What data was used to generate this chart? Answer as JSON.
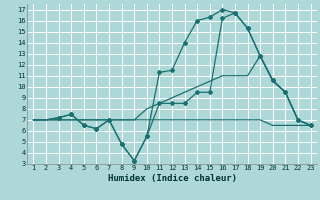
{
  "xlabel": "Humidex (Indice chaleur)",
  "bg_color": "#aed8d8",
  "grid_color": "#ffffff",
  "line_color": "#1a7070",
  "xticks": [
    1,
    2,
    3,
    4,
    5,
    6,
    7,
    8,
    9,
    10,
    11,
    12,
    13,
    14,
    15,
    16,
    17,
    18,
    19,
    20,
    21,
    22,
    23
  ],
  "yticks": [
    3,
    4,
    5,
    6,
    7,
    8,
    9,
    10,
    11,
    12,
    13,
    14,
    15,
    16,
    17
  ],
  "line1_x": [
    1,
    2,
    3,
    4,
    5,
    6,
    7,
    8,
    9,
    10,
    11,
    12,
    13,
    14,
    15,
    16,
    17,
    18,
    19,
    20,
    21,
    22,
    23
  ],
  "line1_y": [
    7,
    7,
    7,
    7,
    7,
    7,
    7,
    7,
    7,
    7,
    7,
    7,
    7,
    7,
    7,
    7,
    7,
    7,
    7,
    6.5,
    6.5,
    6.5,
    6.5
  ],
  "line2_x": [
    1,
    2,
    3,
    4,
    5,
    6,
    7,
    8,
    9,
    10,
    11,
    12,
    13,
    14,
    15,
    16,
    17,
    18,
    19,
    20,
    21,
    22,
    23
  ],
  "line2_y": [
    7,
    7,
    7,
    7,
    7,
    7,
    7,
    7,
    7,
    8,
    8.5,
    9,
    9.5,
    10,
    10.5,
    11,
    11,
    11,
    12.8,
    10.5,
    9.5,
    7,
    6.5
  ],
  "line3_x": [
    1,
    2,
    3,
    4,
    5,
    6,
    7,
    8,
    9,
    10,
    11,
    12,
    13,
    14,
    15,
    16,
    17,
    18,
    19,
    20,
    21,
    22,
    23
  ],
  "line3_y": [
    7,
    7,
    7.2,
    7.5,
    6.5,
    6.2,
    7,
    4.8,
    3.3,
    5.5,
    8.5,
    8.5,
    8.5,
    9.5,
    9.5,
    16.2,
    16.7,
    15.3,
    12.8,
    10.6,
    9.5,
    7,
    6.5
  ],
  "line4_x": [
    1,
    2,
    3,
    4,
    5,
    6,
    7,
    8,
    9,
    10,
    11,
    12,
    13,
    14,
    15,
    16,
    17,
    18,
    19,
    20,
    21,
    22,
    23
  ],
  "line4_y": [
    7,
    7,
    7.2,
    7.5,
    6.5,
    6.2,
    7,
    4.8,
    3.3,
    5.5,
    11.3,
    11.5,
    14,
    16.0,
    16.3,
    17,
    16.7,
    15.3,
    12.8,
    10.6,
    9.5,
    7,
    6.5
  ],
  "marker_x3": [
    3,
    4,
    5,
    6,
    7,
    8,
    9,
    10,
    11,
    12,
    13,
    14,
    15,
    16,
    17,
    18,
    19,
    20,
    21,
    22,
    23
  ],
  "marker_y3": [
    7.2,
    7.5,
    6.5,
    6.2,
    7,
    4.8,
    3.3,
    5.5,
    8.5,
    8.5,
    8.5,
    9.5,
    9.5,
    16.2,
    16.7,
    15.3,
    12.8,
    10.6,
    9.5,
    7,
    6.5
  ],
  "marker_x4": [
    3,
    4,
    5,
    6,
    7,
    8,
    9,
    10,
    11,
    12,
    13,
    14,
    15,
    16,
    17,
    18,
    19,
    20,
    21,
    22,
    23
  ],
  "marker_y4": [
    7.2,
    7.5,
    6.5,
    6.2,
    7,
    4.8,
    3.3,
    5.5,
    11.3,
    11.5,
    14,
    16.0,
    16.3,
    17,
    16.7,
    15.3,
    12.8,
    10.6,
    9.5,
    7,
    6.5
  ]
}
